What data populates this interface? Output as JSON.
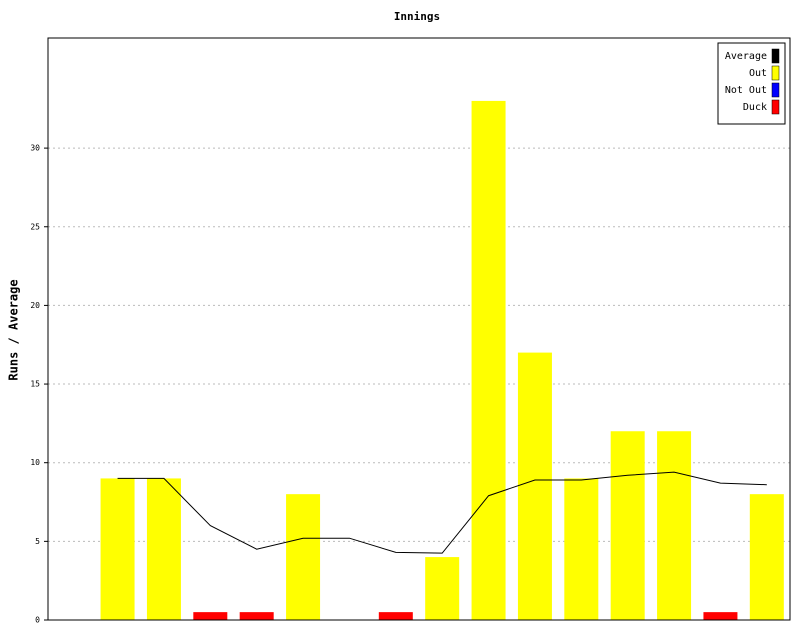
{
  "chart_data": {
    "type": "bar",
    "title": "Innings",
    "y_label": "Runs / Average",
    "categories": [
      null,
      null,
      null,
      null,
      null,
      null,
      null,
      null,
      null,
      null,
      null,
      null,
      null,
      null,
      null,
      null
    ],
    "series": [
      {
        "name": "Average",
        "color": "#000000",
        "kind": "line",
        "values": [
          null,
          9,
          9,
          6,
          4.5,
          5.2,
          5.2,
          4.3,
          4.25,
          7.9,
          8.9,
          8.9,
          9.2,
          9.4,
          8.7,
          8.6
        ]
      },
      {
        "name": "Out",
        "color": "#ffff00",
        "kind": "bar",
        "values": [
          null,
          9,
          9,
          null,
          null,
          8,
          null,
          null,
          4,
          33,
          17,
          9,
          12,
          12,
          null,
          8
        ]
      },
      {
        "name": "Not Out",
        "color": "#0000ff",
        "kind": "bar",
        "values": [
          null,
          null,
          null,
          null,
          null,
          null,
          null,
          null,
          null,
          null,
          null,
          null,
          null,
          null,
          null,
          null
        ]
      },
      {
        "name": "Duck",
        "color": "#ff0000",
        "kind": "bar",
        "values": [
          null,
          null,
          null,
          0.5,
          0.5,
          null,
          null,
          0.5,
          null,
          null,
          null,
          null,
          null,
          null,
          0.5,
          null
        ]
      }
    ],
    "ylim": [
      0,
      37
    ],
    "yticks": [
      0,
      5,
      10,
      15,
      20,
      25,
      30
    ],
    "grid": true,
    "legend": "top-right"
  }
}
